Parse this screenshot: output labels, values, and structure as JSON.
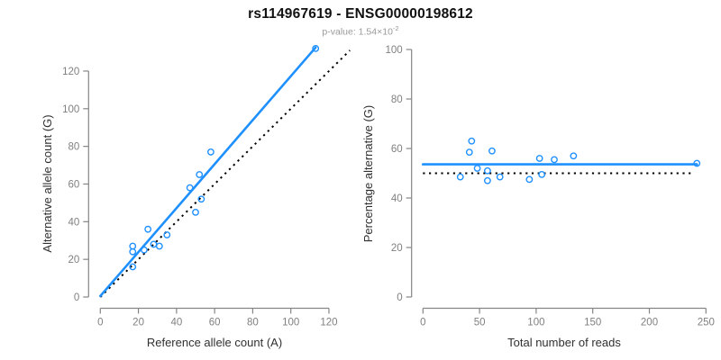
{
  "header": {
    "title": "rs114967619 - ENSG00000198612",
    "p_value_prefix": "p-value: 1.54×10",
    "p_value_exponent": "-2"
  },
  "colors": {
    "accent_blue": "#1E90FF",
    "axis_line": "#858585",
    "tick_label": "#808080",
    "axis_title": "#303030",
    "identity_line": "#000000",
    "title": "#111111",
    "subtitle": "#9a9a9a"
  },
  "chart_data": [
    {
      "type": "scatter",
      "title": "",
      "xlabel": "Reference allele count (A)",
      "ylabel": "Alternative allele count (G)",
      "xlim": [
        0,
        133
      ],
      "ylim": [
        0,
        134
      ],
      "xticks": [
        0,
        20,
        40,
        60,
        80,
        100,
        120
      ],
      "yticks": [
        0,
        20,
        40,
        60,
        80,
        100,
        120
      ],
      "grid": false,
      "legend": null,
      "points": [
        [
          17,
          16
        ],
        [
          17,
          24
        ],
        [
          17,
          27
        ],
        [
          23,
          25
        ],
        [
          25,
          36
        ],
        [
          28,
          28
        ],
        [
          31,
          27
        ],
        [
          35,
          33
        ],
        [
          47,
          58
        ],
        [
          50,
          45
        ],
        [
          52,
          65
        ],
        [
          53,
          52
        ],
        [
          58,
          77
        ],
        [
          113,
          132
        ]
      ],
      "lines": [
        {
          "name": "regression-fit",
          "style": "solid",
          "color": "blue",
          "x1": 0,
          "y1": 0.5,
          "x2": 113,
          "y2": 132.5
        },
        {
          "name": "identity",
          "style": "dotted",
          "color": "black",
          "x1": 0,
          "y1": 0,
          "x2": 131,
          "y2": 131
        }
      ]
    },
    {
      "type": "scatter",
      "title": "",
      "xlabel": "Total number of reads",
      "ylabel": "Percentage alternative (G)",
      "xlim": [
        0,
        250
      ],
      "ylim": [
        0,
        100
      ],
      "xticks": [
        0,
        50,
        100,
        150,
        200,
        250
      ],
      "yticks": [
        0,
        20,
        40,
        60,
        80,
        100
      ],
      "grid": false,
      "legend": null,
      "points": [
        [
          33,
          48.5
        ],
        [
          41,
          58.5
        ],
        [
          43,
          63
        ],
        [
          48,
          52
        ],
        [
          57,
          51
        ],
        [
          57,
          47
        ],
        [
          61,
          59
        ],
        [
          68,
          48.5
        ],
        [
          94,
          47.5
        ],
        [
          103,
          56
        ],
        [
          105,
          49.5
        ],
        [
          116,
          55.5
        ],
        [
          133,
          57
        ],
        [
          242,
          54
        ]
      ],
      "lines": [
        {
          "name": "mean-fit",
          "style": "solid",
          "color": "blue",
          "x1": 0,
          "y1": 53.6,
          "x2": 242,
          "y2": 53.6
        },
        {
          "name": "null-50pct",
          "style": "dotted",
          "color": "black",
          "x1": 0,
          "y1": 50,
          "x2": 237,
          "y2": 50
        }
      ]
    }
  ]
}
